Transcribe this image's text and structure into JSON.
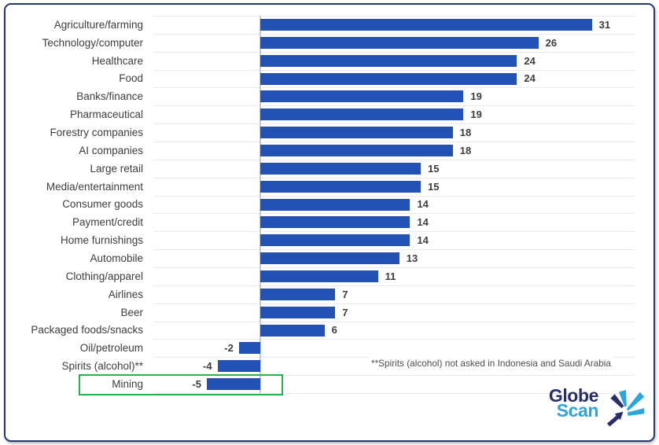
{
  "chart_data": {
    "type": "bar",
    "orientation": "horizontal",
    "title": "",
    "xlabel": "",
    "ylabel": "",
    "xlim": [
      -10,
      35
    ],
    "grid": "row-separators",
    "legend": "none",
    "categories": [
      "Agriculture/farming",
      "Technology/computer",
      "Healthcare",
      "Food",
      "Banks/finance",
      "Pharmaceutical",
      "Forestry companies",
      "AI companies",
      "Large retail",
      "Media/entertainment",
      "Consumer goods",
      "Payment/credit",
      "Home furnishings",
      "Automobile",
      "Clothing/apparel",
      "Airlines",
      "Beer",
      "Packaged foods/snacks",
      "Oil/petroleum",
      "Spirits (alcohol)**",
      "Mining"
    ],
    "values": [
      31,
      26,
      24,
      24,
      19,
      19,
      18,
      18,
      15,
      15,
      14,
      14,
      14,
      13,
      11,
      7,
      7,
      6,
      -2,
      -4,
      -5
    ],
    "highlighted_category": "Mining",
    "colors": {
      "bar": "#2351b5",
      "gridline": "#eaeaea",
      "zero_line": "#c3cad7",
      "label_text": "#3d3d3d",
      "value_text": "#3d3d3d",
      "highlight_box": "#24b34c",
      "frame_border": "#24386b"
    }
  },
  "annotation": {
    "note": "**Spirits (alcohol) not asked in Indonesia and Saudi Arabia"
  },
  "logo": {
    "line1": "Globe",
    "line2": "Scan",
    "color_navy": "#272e6b",
    "color_blue": "#2ca5da"
  }
}
